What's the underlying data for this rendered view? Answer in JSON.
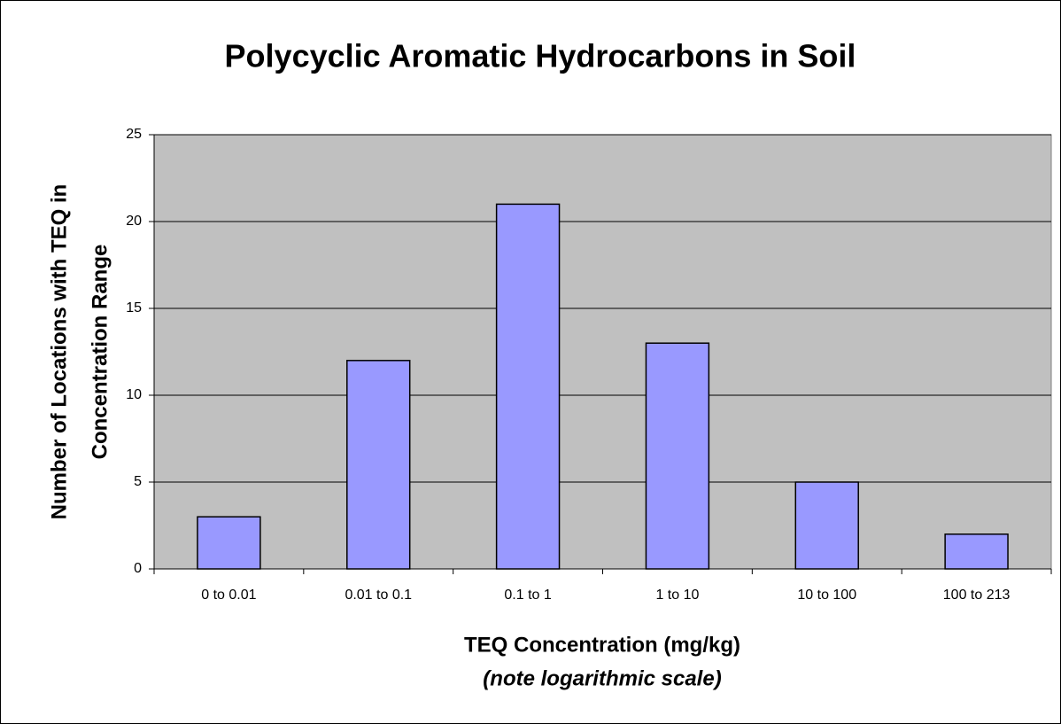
{
  "chart_data": {
    "type": "bar",
    "title": "Polycyclic Aromatic Hydrocarbons in Soil",
    "ylabel": [
      "Number of Locations with TEQ in",
      "Concentration Range"
    ],
    "xlabel": "TEQ Concentration (mg/kg)",
    "xlabel_note": "(note logarithmic scale)",
    "categories": [
      "0 to 0.01",
      "0.01 to 0.1",
      "0.1 to 1",
      "1 to 10",
      "10 to 100",
      "100 to 213"
    ],
    "values": [
      3,
      12,
      21,
      13,
      5,
      2
    ],
    "color": "#9999ff",
    "ylim": [
      0,
      25
    ],
    "yticks": [
      0,
      5,
      10,
      15,
      20,
      25
    ],
    "grid": true
  }
}
